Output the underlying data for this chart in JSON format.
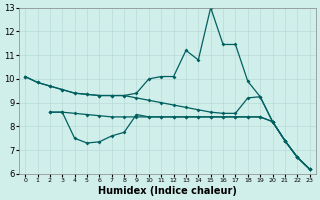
{
  "xlabel": "Humidex (Indice chaleur)",
  "bg_color": "#d0eeea",
  "grid_color": "#b8dbd6",
  "line_color": "#006060",
  "xlim_min": -0.5,
  "xlim_max": 23.5,
  "ylim_min": 6,
  "ylim_max": 13,
  "xticks": [
    0,
    1,
    2,
    3,
    4,
    5,
    6,
    7,
    8,
    9,
    10,
    11,
    12,
    13,
    14,
    15,
    16,
    17,
    18,
    19,
    20,
    21,
    22,
    23
  ],
  "yticks": [
    6,
    7,
    8,
    9,
    10,
    11,
    12,
    13
  ],
  "line1_x": [
    0,
    1,
    2,
    3,
    4,
    5,
    6,
    7,
    8,
    9,
    10,
    11,
    12,
    13,
    14,
    15,
    16,
    17,
    18,
    19,
    20,
    21,
    22,
    23
  ],
  "line1_y": [
    10.1,
    9.85,
    9.7,
    9.55,
    9.4,
    9.35,
    9.3,
    9.3,
    9.3,
    9.4,
    10.0,
    10.1,
    10.1,
    11.2,
    10.8,
    13.0,
    11.45,
    11.45,
    9.9,
    9.25,
    8.2,
    7.4,
    6.7,
    6.2
  ],
  "line2_x": [
    0,
    1,
    2,
    3,
    4,
    5,
    6,
    7,
    8,
    9,
    10,
    11,
    12,
    13,
    14,
    15,
    16,
    17,
    18,
    19,
    20,
    21,
    22,
    23
  ],
  "line2_y": [
    10.1,
    9.85,
    9.7,
    9.55,
    9.4,
    9.35,
    9.3,
    9.3,
    9.3,
    9.2,
    9.1,
    9.0,
    8.9,
    8.8,
    8.7,
    8.6,
    8.55,
    8.55,
    9.2,
    9.25,
    8.2,
    7.4,
    6.7,
    6.2
  ],
  "line3_x": [
    2,
    3,
    4,
    5,
    6,
    7,
    8,
    9,
    10,
    11,
    12,
    13,
    14,
    15,
    16,
    17,
    18,
    19,
    20,
    21,
    22,
    23
  ],
  "line3_y": [
    8.6,
    8.6,
    8.55,
    8.5,
    8.45,
    8.4,
    8.4,
    8.4,
    8.4,
    8.4,
    8.4,
    8.4,
    8.4,
    8.4,
    8.4,
    8.4,
    8.4,
    8.4,
    8.2,
    7.4,
    6.7,
    6.2
  ],
  "line4_x": [
    2,
    3,
    4,
    5,
    6,
    7,
    8,
    9,
    10,
    11,
    12,
    13,
    14,
    15,
    16,
    17,
    18,
    19,
    20,
    21,
    22,
    23
  ],
  "line4_y": [
    8.6,
    8.6,
    7.5,
    7.3,
    7.35,
    7.6,
    7.75,
    8.5,
    8.4,
    8.4,
    8.4,
    8.4,
    8.4,
    8.4,
    8.4,
    8.4,
    8.4,
    8.4,
    8.2,
    7.4,
    6.7,
    6.2
  ]
}
